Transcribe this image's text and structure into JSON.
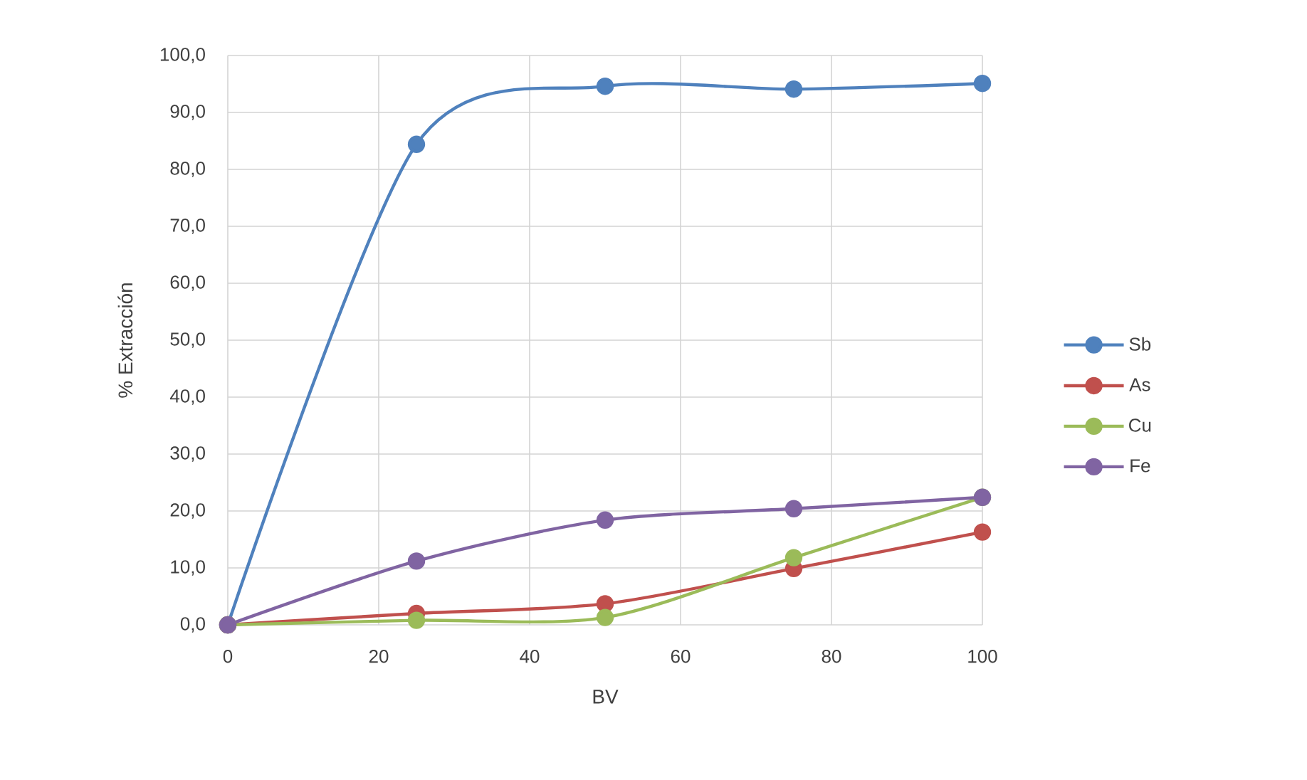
{
  "chart_data": {
    "type": "line",
    "xlabel": "BV",
    "ylabel": "% Extracción",
    "x": [
      0,
      25,
      50,
      75,
      100
    ],
    "series": [
      {
        "name": "Sb",
        "color": "#4f81bd",
        "values": [
          0,
          84.4,
          94.6,
          94.1,
          95.1
        ]
      },
      {
        "name": "As",
        "color": "#c0504d",
        "values": [
          0,
          2.0,
          3.7,
          9.9,
          16.3
        ]
      },
      {
        "name": "Cu",
        "color": "#9bbb59",
        "values": [
          0,
          0.8,
          1.3,
          11.8,
          22.4
        ]
      },
      {
        "name": "Fe",
        "color": "#8064a2",
        "values": [
          0,
          11.2,
          18.4,
          20.4,
          22.4
        ]
      }
    ],
    "xlim": [
      0,
      100
    ],
    "xticks": [
      0,
      20,
      40,
      60,
      80,
      100
    ],
    "ylim": [
      0,
      100
    ],
    "yticks": [
      {
        "value": 0,
        "label": "0,0"
      },
      {
        "value": 10,
        "label": "10,0"
      },
      {
        "value": 20,
        "label": "20,0"
      },
      {
        "value": 30,
        "label": "30,0"
      },
      {
        "value": 40,
        "label": "40,0"
      },
      {
        "value": 50,
        "label": "50,0"
      },
      {
        "value": 60,
        "label": "60,0"
      },
      {
        "value": 70,
        "label": "70,0"
      },
      {
        "value": 80,
        "label": "80,0"
      },
      {
        "value": 90,
        "label": "90,0"
      },
      {
        "value": 100,
        "label": "100,0"
      }
    ],
    "grid": true,
    "legend": "right",
    "marker": "circle",
    "line_style": "solid"
  }
}
